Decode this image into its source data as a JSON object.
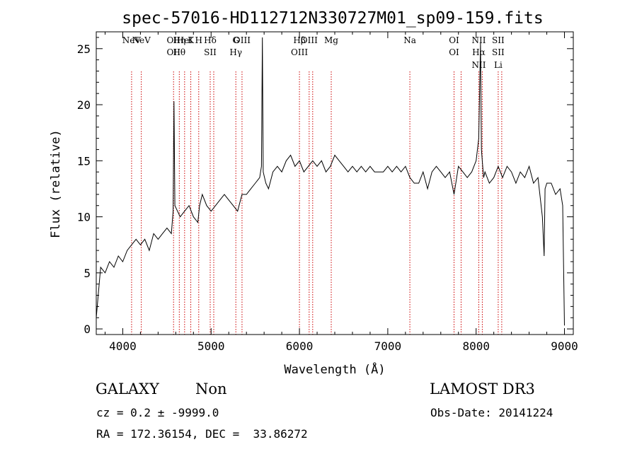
{
  "chart_data": {
    "type": "line",
    "title": "spec-57016-HD112712N330727M01_sp09-159.fits",
    "xlabel": "Wavelength (Å)",
    "ylabel": "Flux (relative)",
    "xlim": [
      3700,
      9100
    ],
    "ylim": [
      -0.5,
      26.5
    ],
    "x_ticks": [
      4000,
      5000,
      6000,
      7000,
      8000,
      9000
    ],
    "y_ticks": [
      0,
      5,
      10,
      15,
      20,
      25
    ],
    "grid": false,
    "line_color": "#000000",
    "marker_color": "#cc0000",
    "series": [
      {
        "x": [
          3700,
          3750,
          3800,
          3850,
          3900,
          3950,
          4000,
          4050,
          4100,
          4150,
          4200,
          4250,
          4300,
          4350,
          4400,
          4450,
          4500,
          4550,
          4570,
          4580,
          4590,
          4620,
          4650,
          4700,
          4750,
          4800,
          4850,
          4870,
          4900,
          4950,
          5000,
          5050,
          5100,
          5150,
          5200,
          5250,
          5300,
          5350,
          5400,
          5450,
          5500,
          5550,
          5570,
          5580,
          5590,
          5620,
          5650,
          5700,
          5750,
          5800,
          5850,
          5900,
          5950,
          6000,
          6050,
          6100,
          6150,
          6200,
          6250,
          6300,
          6350,
          6400,
          6450,
          6500,
          6550,
          6600,
          6650,
          6700,
          6750,
          6800,
          6850,
          6900,
          6950,
          7000,
          7050,
          7100,
          7150,
          7200,
          7250,
          7300,
          7350,
          7400,
          7450,
          7500,
          7550,
          7600,
          7650,
          7700,
          7750,
          7800,
          7850,
          7900,
          7950,
          8000,
          8030,
          8050,
          8060,
          8070,
          8085,
          8100,
          8150,
          8200,
          8250,
          8300,
          8350,
          8400,
          8450,
          8500,
          8550,
          8600,
          8650,
          8700,
          8750,
          8770,
          8780,
          8800,
          8850,
          8900,
          8950,
          8980,
          9000
        ],
        "y": [
          1.0,
          5.5,
          5.0,
          6.0,
          5.5,
          6.5,
          6.0,
          7.0,
          7.5,
          8.0,
          7.5,
          8.0,
          7.0,
          8.5,
          8.0,
          8.5,
          9.0,
          8.5,
          10.5,
          20.3,
          11.0,
          10.5,
          10.0,
          10.5,
          11.0,
          10.0,
          9.5,
          11.0,
          12.0,
          11.0,
          10.5,
          11.0,
          11.5,
          12.0,
          11.5,
          11.0,
          10.5,
          12.0,
          12.0,
          12.5,
          13.0,
          13.5,
          14.5,
          26.0,
          14.0,
          13.0,
          12.5,
          14.0,
          14.5,
          14.0,
          15.0,
          15.5,
          14.5,
          15.0,
          14.0,
          14.5,
          15.0,
          14.5,
          15.0,
          14.0,
          14.5,
          15.5,
          15.0,
          14.5,
          14.0,
          14.5,
          14.0,
          14.5,
          14.0,
          14.5,
          14.0,
          14.0,
          14.0,
          14.5,
          14.0,
          14.5,
          14.0,
          14.5,
          13.5,
          13.0,
          13.0,
          14.0,
          12.5,
          14.0,
          14.5,
          14.0,
          13.5,
          14.0,
          12.0,
          14.5,
          14.0,
          13.5,
          14.0,
          15.0,
          17.0,
          25.5,
          16.0,
          15.0,
          13.5,
          14.0,
          13.0,
          13.5,
          14.5,
          13.5,
          14.5,
          14.0,
          13.0,
          14.0,
          13.5,
          14.5,
          13.0,
          13.5,
          10.0,
          6.5,
          12.5,
          13.0,
          13.0,
          12.0,
          12.5,
          11.0,
          0.3
        ]
      }
    ],
    "lines": [
      {
        "x": 4100,
        "labels": [
          "NeV"
        ]
      },
      {
        "x": 4210,
        "labels": [
          "NeV"
        ]
      },
      {
        "x": 4575,
        "labels": [
          "OII",
          "OII"
        ]
      },
      {
        "x": 4640,
        "labels": [
          "Hη",
          "Hθ"
        ]
      },
      {
        "x": 4700,
        "labels": [
          "HeI"
        ]
      },
      {
        "x": 4770,
        "labels": [
          "K"
        ]
      },
      {
        "x": 4860,
        "labels": [
          "H"
        ]
      },
      {
        "x": 4990,
        "labels": [
          "Hδ",
          "SII"
        ]
      },
      {
        "x": 5030,
        "labels": []
      },
      {
        "x": 5280,
        "labels": [
          "G",
          "Hγ"
        ]
      },
      {
        "x": 5350,
        "labels": [
          "OIII"
        ]
      },
      {
        "x": 6000,
        "labels": [
          "Hβ",
          "OIII"
        ]
      },
      {
        "x": 6110,
        "labels": [
          "OIII"
        ]
      },
      {
        "x": 6150,
        "labels": []
      },
      {
        "x": 6360,
        "labels": [
          "Mg"
        ]
      },
      {
        "x": 7250,
        "labels": [
          "Na"
        ]
      },
      {
        "x": 7750,
        "labels": [
          "OI",
          "OI"
        ]
      },
      {
        "x": 7830,
        "labels": []
      },
      {
        "x": 8030,
        "labels": [
          "NII",
          "Hα",
          "NII"
        ]
      },
      {
        "x": 8070,
        "labels": []
      },
      {
        "x": 8250,
        "labels": [
          "SII",
          "SII",
          "Li"
        ]
      },
      {
        "x": 8290,
        "labels": []
      }
    ]
  },
  "footer": {
    "class_text": "GALAXY",
    "subclass_text": "Non",
    "survey_text": "LAMOST DR3",
    "cz_text": "cz = 0.2 ± -9999.0",
    "obsdate_text": "Obs-Date: 20141224",
    "radec_text": "RA = 172.36154, DEC =  33.86272"
  }
}
